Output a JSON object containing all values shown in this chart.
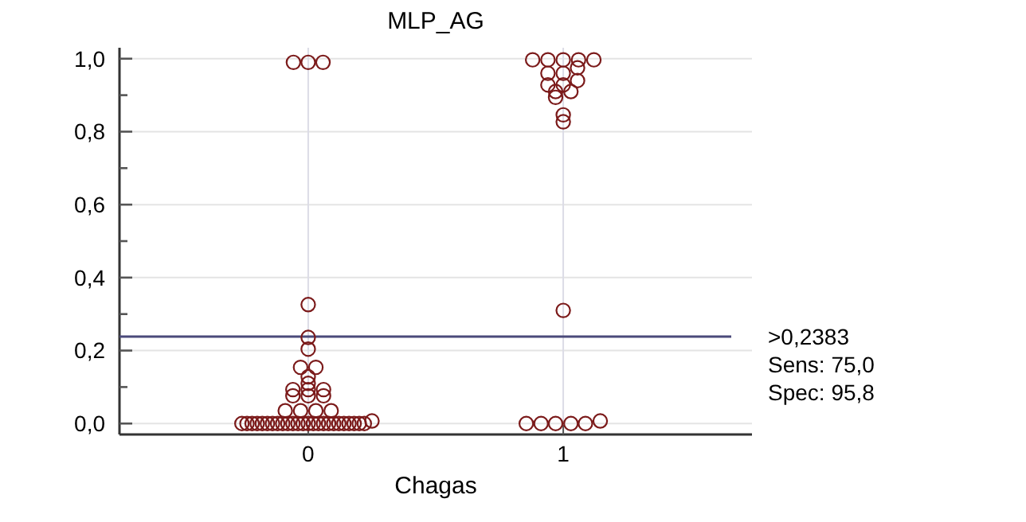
{
  "chart_data": {
    "type": "scatter",
    "title": "MLP_AG",
    "xlabel": "Chagas",
    "xlim": [
      -0.74,
      1.74
    ],
    "xticks": [
      0,
      1
    ],
    "ylim": [
      -0.03,
      1.03
    ],
    "yticks": [
      {
        "value": 0,
        "label": "0,0"
      },
      {
        "value": 0.1,
        "label": null
      },
      {
        "value": 0.2,
        "label": "0,2"
      },
      {
        "value": 0.3,
        "label": null
      },
      {
        "value": 0.4,
        "label": "0,4"
      },
      {
        "value": 0.5,
        "label": null
      },
      {
        "value": 0.6,
        "label": "0,6"
      },
      {
        "value": 0.7,
        "label": null
      },
      {
        "value": 0.8,
        "label": "0,8"
      },
      {
        "value": 0.9,
        "label": null
      },
      {
        "value": 1,
        "label": "1,0"
      }
    ],
    "grid": true,
    "marker": "circle",
    "series": [
      {
        "color": "#7b1a1a",
        "x": [
          -0.058,
          0,
          0.058,
          0,
          0,
          0,
          -0.03,
          0.03,
          0,
          0,
          -0.06,
          0,
          0.06,
          -0.06,
          0,
          0.06,
          -0.09,
          -0.03,
          0.03,
          0.09,
          0.25,
          -0.26,
          -0.24,
          -0.22,
          -0.2,
          -0.18,
          -0.16,
          -0.14,
          -0.12,
          -0.1,
          -0.08,
          -0.06,
          -0.04,
          -0.02,
          0,
          0.02,
          0.04,
          0.06,
          0.08,
          0.1,
          0.12,
          0.14,
          0.16,
          0.18,
          0.2,
          0.22
        ],
        "values": [
          0.99,
          0.99,
          0.99,
          0.326,
          0.236,
          0.204,
          0.154,
          0.154,
          0.128,
          0.11,
          0.093,
          0.093,
          0.093,
          0.076,
          0.076,
          0.076,
          0.035,
          0.035,
          0.035,
          0.035,
          0.007,
          0,
          0,
          0,
          0,
          0,
          0,
          0,
          0,
          0,
          0,
          0,
          0,
          0,
          0,
          0,
          0,
          0,
          0,
          0,
          0,
          0,
          0,
          0,
          0,
          0
        ]
      },
      {
        "color": "#7b1a1a",
        "x": [
          0.88,
          0.94,
          1,
          1.06,
          1.12,
          1.056,
          0.94,
          1,
          1.056,
          0.94,
          1,
          0.97,
          1.03,
          0.97,
          1,
          1,
          1,
          0.855,
          0.913,
          0.97,
          1.03,
          1.087,
          1.145
        ],
        "values": [
          0.997,
          0.997,
          0.997,
          0.997,
          0.997,
          0.975,
          0.96,
          0.96,
          0.94,
          0.928,
          0.928,
          0.91,
          0.91,
          0.894,
          0.846,
          0.827,
          0.31,
          0,
          0,
          0,
          0,
          0,
          0.007
        ]
      }
    ],
    "ref_lines": [
      {
        "axis": "y",
        "value": 0.2383,
        "label": ">0,2383",
        "color": "#4b4a7a"
      }
    ],
    "annotations": [
      "Sens: 75,0",
      "Spec: 95,8"
    ]
  }
}
